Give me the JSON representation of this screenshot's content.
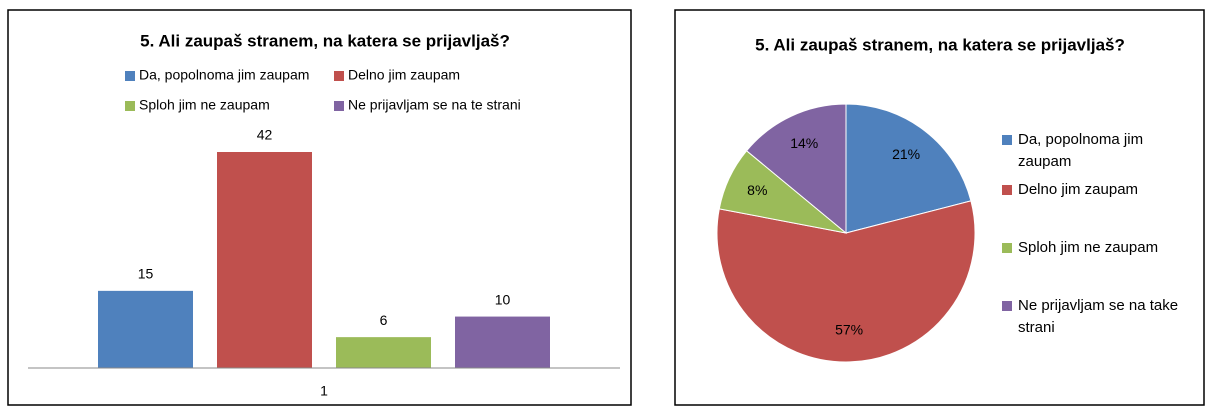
{
  "chart_data": [
    {
      "type": "bar",
      "title": "5. Ali zaupaš stranem, na katera se prijavljaš?",
      "categories": [
        "1"
      ],
      "series": [
        {
          "name": "Da, popolnoma jim zaupam",
          "color": "#4f81bd",
          "values": [
            15
          ]
        },
        {
          "name": "Delno jim zaupam",
          "color": "#c0504d",
          "values": [
            42
          ]
        },
        {
          "name": "Sploh jim ne zaupam",
          "color": "#9bbb59",
          "values": [
            6
          ]
        },
        {
          "name": "Ne prijavljam se na te strani",
          "color": "#8064a2",
          "values": [
            10
          ]
        }
      ],
      "legend": "top"
    },
    {
      "type": "pie",
      "title": "5. Ali zaupaš stranem, na katera se prijavljaš?",
      "categories": [
        "Da, popolnoma jim zaupam",
        "Delno jim zaupam",
        "Sploh jim ne zaupam",
        "Ne prijavljam se na take strani"
      ],
      "values": [
        21,
        57,
        8,
        14
      ],
      "value_labels": [
        "21%",
        "57%",
        "8%",
        "14%"
      ],
      "colors": [
        "#4f81bd",
        "#c0504d",
        "#9bbb59",
        "#8064a2"
      ],
      "legend": "right"
    }
  ]
}
